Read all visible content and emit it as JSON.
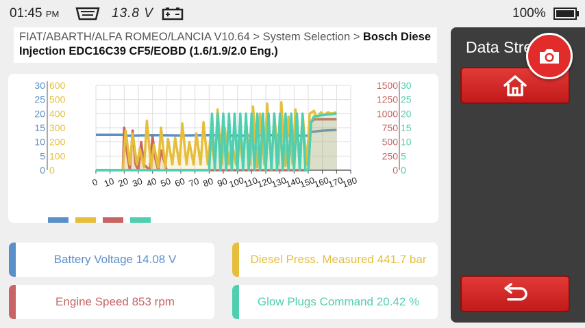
{
  "status": {
    "time": "01:45",
    "ampm": "PM",
    "voltage": "13.8 V",
    "battery_percent": "100%"
  },
  "breadcrumb": {
    "path": "FIAT/ABARTH/ALFA ROMEO/LANCIA V10.64 > System Selection > ",
    "current": "Bosch Diese Injection EDC16C39 CF5/EOBD (1.6/1.9/2.0 Eng.)"
  },
  "panel": {
    "title": "Data Stream"
  },
  "colors": {
    "battery": "#5b8fc7",
    "diesel": "#e6be3c",
    "speed": "#c86464",
    "glow": "#4fcfb0"
  },
  "values": [
    {
      "label": "Battery Voltage 14.08 V",
      "color": "#5b8fc7"
    },
    {
      "label": "Diesel Press. Measured 441.7 bar",
      "color": "#e6be3c"
    },
    {
      "label": "Engine Speed 853 rpm",
      "color": "#c86464"
    },
    {
      "label": "Glow Plugs Command 20.42 %",
      "color": "#4fcfb0"
    }
  ],
  "chart_data": {
    "type": "line",
    "x_ticks": [
      "0",
      "10",
      "20",
      "30",
      "40",
      "50",
      "60",
      "70",
      "80",
      "90",
      "100",
      "110",
      "120",
      "130",
      "140",
      "150",
      "160",
      "170",
      "180"
    ],
    "xlim": [
      0,
      180
    ],
    "grid": true,
    "axes": [
      {
        "side": "left-outer",
        "color": "#5b8fc7",
        "ticks": [
          "30",
          "25",
          "20",
          "15",
          "10",
          "5",
          "0"
        ],
        "ylim": [
          0,
          30
        ]
      },
      {
        "side": "left-inner",
        "color": "#e6be3c",
        "ticks": [
          "600",
          "500",
          "400",
          "300",
          "200",
          "100",
          "0"
        ],
        "ylim": [
          0,
          600
        ]
      },
      {
        "side": "right-inner",
        "color": "#c86464",
        "ticks": [
          "1500",
          "1250",
          "1000",
          "750",
          "500",
          "250",
          "0"
        ],
        "ylim": [
          0,
          1500
        ]
      },
      {
        "side": "right-outer",
        "color": "#4fcfb0",
        "ticks": [
          "30",
          "25",
          "20",
          "15",
          "10",
          "5",
          "0"
        ],
        "ylim": [
          0,
          30
        ]
      }
    ],
    "series": [
      {
        "key": "battery",
        "axis": 0,
        "color": "#5b8fc7",
        "x": [
          0,
          20,
          21,
          40,
          60,
          80,
          100,
          120,
          140,
          150,
          152,
          155,
          160,
          170
        ],
        "y": [
          12.5,
          12.5,
          12.2,
          12.4,
          12.3,
          12.4,
          12.2,
          12.4,
          12.3,
          12.2,
          13.5,
          13.7,
          14.0,
          14.2
        ]
      },
      {
        "key": "speed",
        "axis": 2,
        "color": "#c86464",
        "x": [
          0,
          19,
          20,
          22,
          24,
          26,
          28,
          30,
          32,
          34,
          38,
          40,
          42,
          44,
          46,
          50,
          54,
          60,
          66,
          70,
          74,
          80,
          86,
          90,
          94,
          100,
          106,
          110,
          114,
          118,
          120,
          122,
          124,
          126,
          128,
          130,
          132,
          134,
          136,
          138,
          140,
          144,
          148,
          150,
          152,
          154,
          156,
          170
        ],
        "y": [
          0,
          0,
          750,
          300,
          0,
          700,
          100,
          0,
          500,
          100,
          0,
          600,
          200,
          0,
          350,
          0,
          0,
          0,
          0,
          0,
          0,
          0,
          0,
          0,
          0,
          0,
          0,
          0,
          0,
          0,
          0,
          0,
          0,
          0,
          0,
          0,
          0,
          0,
          0,
          0,
          0,
          0,
          0,
          0,
          850,
          900,
          900,
          900
        ]
      },
      {
        "key": "diesel",
        "axis": 1,
        "color": "#e6be3c",
        "x": [
          0,
          19,
          21,
          24,
          26,
          29,
          31,
          34,
          36,
          39,
          41,
          44,
          46,
          49,
          51,
          54,
          56,
          59,
          61,
          64,
          66,
          69,
          71,
          74,
          76,
          79,
          81,
          84,
          86,
          89,
          91,
          94,
          96,
          99,
          101,
          104,
          106,
          109,
          111,
          114,
          116,
          119,
          121,
          124,
          126,
          129,
          131,
          134,
          136,
          139,
          141,
          144,
          146,
          149,
          151,
          154,
          156,
          159,
          161,
          164,
          166,
          170
        ],
        "y": [
          0,
          0,
          280,
          40,
          260,
          40,
          150,
          20,
          350,
          20,
          180,
          20,
          300,
          20,
          220,
          40,
          230,
          40,
          330,
          40,
          200,
          40,
          260,
          40,
          340,
          40,
          240,
          40,
          430,
          40,
          300,
          40,
          200,
          40,
          240,
          40,
          350,
          40,
          450,
          20,
          400,
          40,
          470,
          30,
          400,
          40,
          480,
          30,
          380,
          40,
          430,
          30,
          400,
          40,
          400,
          420,
          370,
          410,
          390,
          410,
          400,
          410
        ]
      },
      {
        "key": "glow",
        "axis": 3,
        "color": "#4fcfb0",
        "x": [
          0,
          80,
          82,
          84,
          86,
          88,
          90,
          92,
          94,
          96,
          98,
          100,
          102,
          104,
          106,
          108,
          110,
          112,
          114,
          116,
          118,
          120,
          122,
          124,
          126,
          128,
          130,
          132,
          134,
          136,
          138,
          140,
          142,
          144,
          146,
          148,
          150,
          152,
          154,
          160,
          170
        ],
        "y": [
          0,
          0,
          20,
          0,
          20,
          0,
          20,
          0,
          20,
          0,
          20,
          0,
          20,
          0,
          20,
          0,
          20,
          0,
          20,
          0,
          20,
          0,
          20,
          0,
          20,
          0,
          20,
          0,
          20,
          0,
          20,
          0,
          20,
          0,
          20,
          0,
          0,
          17,
          19,
          19.5,
          20
        ]
      }
    ]
  }
}
